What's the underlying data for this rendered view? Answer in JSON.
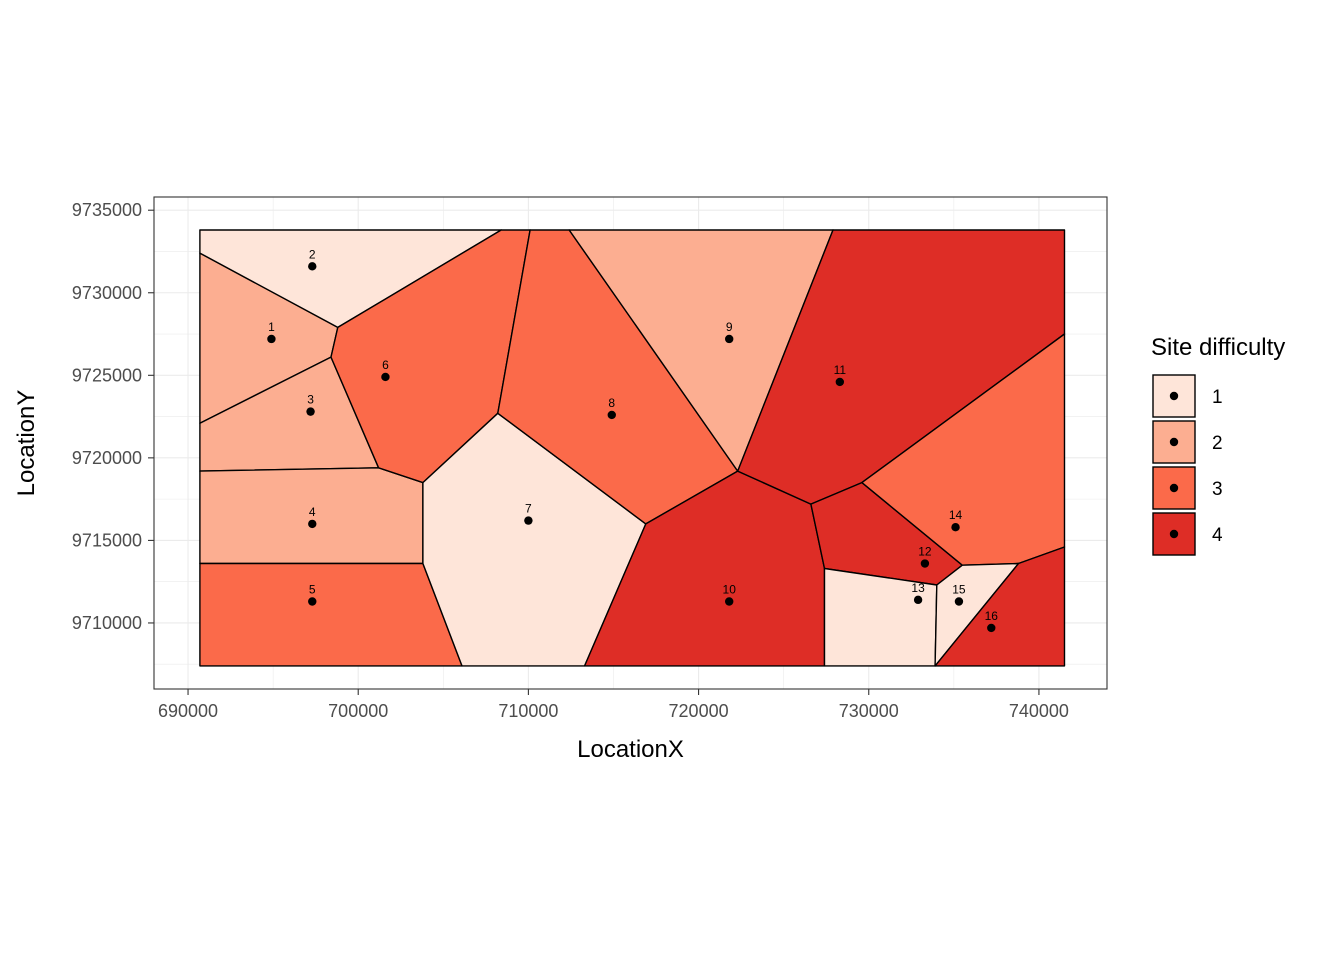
{
  "chart_data": {
    "type": "voronoi-map",
    "title": "",
    "xlabel": "LocationX",
    "ylabel": "LocationY",
    "xlim": [
      688000,
      744000
    ],
    "ylim": [
      9706000,
      9735800
    ],
    "x_ticks": [
      690000,
      700000,
      710000,
      720000,
      730000,
      740000
    ],
    "y_ticks": [
      9710000,
      9715000,
      9720000,
      9725000,
      9730000,
      9735000
    ],
    "x_tick_labels": [
      "690000",
      "700000",
      "710000",
      "720000",
      "730000",
      "740000"
    ],
    "y_tick_labels": [
      "9710000",
      "9715000",
      "9720000",
      "9725000",
      "9730000",
      "9735000"
    ],
    "grid": true,
    "legend": {
      "title": "Site difficulty",
      "placement": "right",
      "entries": [
        {
          "label": "1",
          "color": "#FEE5D9"
        },
        {
          "label": "2",
          "color": "#FCAE91"
        },
        {
          "label": "3",
          "color": "#FB6A4A"
        },
        {
          "label": "4",
          "color": "#DE2D26"
        }
      ]
    },
    "sites": [
      {
        "label": "1",
        "x": 694900,
        "y": 9727200,
        "difficulty": 2
      },
      {
        "label": "2",
        "x": 697300,
        "y": 9731600,
        "difficulty": 1
      },
      {
        "label": "3",
        "x": 697200,
        "y": 9722800,
        "difficulty": 2
      },
      {
        "label": "4",
        "x": 697300,
        "y": 9716000,
        "difficulty": 2
      },
      {
        "label": "5",
        "x": 697300,
        "y": 9711300,
        "difficulty": 3
      },
      {
        "label": "6",
        "x": 701600,
        "y": 9724900,
        "difficulty": 3
      },
      {
        "label": "7",
        "x": 710000,
        "y": 9716200,
        "difficulty": 1
      },
      {
        "label": "8",
        "x": 714900,
        "y": 9722600,
        "difficulty": 3
      },
      {
        "label": "9",
        "x": 721800,
        "y": 9727200,
        "difficulty": 2
      },
      {
        "label": "10",
        "x": 721800,
        "y": 9711300,
        "difficulty": 4
      },
      {
        "label": "11",
        "x": 728300,
        "y": 9724600,
        "difficulty": 4
      },
      {
        "label": "12",
        "x": 733300,
        "y": 9713600,
        "difficulty": 4
      },
      {
        "label": "13",
        "x": 732900,
        "y": 9711400,
        "difficulty": 1
      },
      {
        "label": "14",
        "x": 735100,
        "y": 9715800,
        "difficulty": 3
      },
      {
        "label": "15",
        "x": 735300,
        "y": 9711300,
        "difficulty": 1
      },
      {
        "label": "16",
        "x": 737200,
        "y": 9709700,
        "difficulty": 4
      }
    ],
    "cells": [
      {
        "site": "1",
        "difficulty": 2,
        "polygon": [
          [
            690700,
            9732400
          ],
          [
            698800,
            9727900
          ],
          [
            698400,
            9726100
          ],
          [
            690700,
            9722100
          ]
        ]
      },
      {
        "site": "2",
        "difficulty": 1,
        "polygon": [
          [
            690700,
            9733800
          ],
          [
            708400,
            9733800
          ],
          [
            698800,
            9727900
          ],
          [
            690700,
            9732400
          ]
        ]
      },
      {
        "site": "3",
        "difficulty": 2,
        "polygon": [
          [
            690700,
            9722100
          ],
          [
            698400,
            9726100
          ],
          [
            701200,
            9719400
          ],
          [
            690700,
            9719200
          ]
        ]
      },
      {
        "site": "4",
        "difficulty": 2,
        "polygon": [
          [
            690700,
            9719200
          ],
          [
            701200,
            9719400
          ],
          [
            703800,
            9718500
          ],
          [
            703800,
            9713600
          ],
          [
            690700,
            9713600
          ]
        ]
      },
      {
        "site": "5",
        "difficulty": 3,
        "polygon": [
          [
            690700,
            9713600
          ],
          [
            703800,
            9713600
          ],
          [
            706100,
            9707400
          ],
          [
            690700,
            9707400
          ]
        ]
      },
      {
        "site": "6",
        "difficulty": 3,
        "polygon": [
          [
            698800,
            9727900
          ],
          [
            708400,
            9733800
          ],
          [
            710100,
            9733800
          ],
          [
            708200,
            9722700
          ],
          [
            703800,
            9718500
          ],
          [
            701200,
            9719400
          ],
          [
            698400,
            9726100
          ]
        ]
      },
      {
        "site": "7",
        "difficulty": 1,
        "polygon": [
          [
            703800,
            9718500
          ],
          [
            708200,
            9722700
          ],
          [
            716900,
            9716000
          ],
          [
            713300,
            9707400
          ],
          [
            706100,
            9707400
          ],
          [
            703800,
            9713600
          ]
        ]
      },
      {
        "site": "8",
        "difficulty": 3,
        "polygon": [
          [
            710100,
            9733800
          ],
          [
            712400,
            9733800
          ],
          [
            722300,
            9719200
          ],
          [
            716900,
            9716000
          ],
          [
            708200,
            9722700
          ]
        ]
      },
      {
        "site": "9",
        "difficulty": 2,
        "polygon": [
          [
            712400,
            9733800
          ],
          [
            727900,
            9733800
          ],
          [
            722300,
            9719200
          ]
        ]
      },
      {
        "site": "10",
        "difficulty": 4,
        "polygon": [
          [
            722300,
            9719200
          ],
          [
            716900,
            9716000
          ],
          [
            713300,
            9707400
          ],
          [
            727400,
            9707400
          ],
          [
            727400,
            9713300
          ],
          [
            726600,
            9717200
          ]
        ]
      },
      {
        "site": "11",
        "difficulty": 4,
        "polygon": [
          [
            727900,
            9733800
          ],
          [
            741500,
            9733800
          ],
          [
            741500,
            9727500
          ],
          [
            729600,
            9718500
          ],
          [
            726600,
            9717200
          ],
          [
            722300,
            9719200
          ]
        ]
      },
      {
        "site": "12",
        "difficulty": 4,
        "polygon": [
          [
            726600,
            9717200
          ],
          [
            729600,
            9718500
          ],
          [
            735500,
            9713500
          ],
          [
            734000,
            9712300
          ],
          [
            727400,
            9713300
          ]
        ]
      },
      {
        "site": "13",
        "difficulty": 1,
        "polygon": [
          [
            727400,
            9713300
          ],
          [
            734000,
            9712300
          ],
          [
            733900,
            9707400
          ],
          [
            727400,
            9707400
          ]
        ]
      },
      {
        "site": "14",
        "difficulty": 3,
        "polygon": [
          [
            729600,
            9718500
          ],
          [
            741500,
            9727500
          ],
          [
            741500,
            9714600
          ],
          [
            738800,
            9713600
          ],
          [
            735500,
            9713500
          ]
        ]
      },
      {
        "site": "15",
        "difficulty": 1,
        "polygon": [
          [
            734000,
            9712300
          ],
          [
            735500,
            9713500
          ],
          [
            738800,
            9713600
          ],
          [
            733900,
            9707400
          ]
        ]
      },
      {
        "site": "16",
        "difficulty": 4,
        "polygon": [
          [
            733900,
            9707400
          ],
          [
            738800,
            9713600
          ],
          [
            741500,
            9714600
          ],
          [
            741500,
            9707400
          ]
        ]
      }
    ]
  }
}
